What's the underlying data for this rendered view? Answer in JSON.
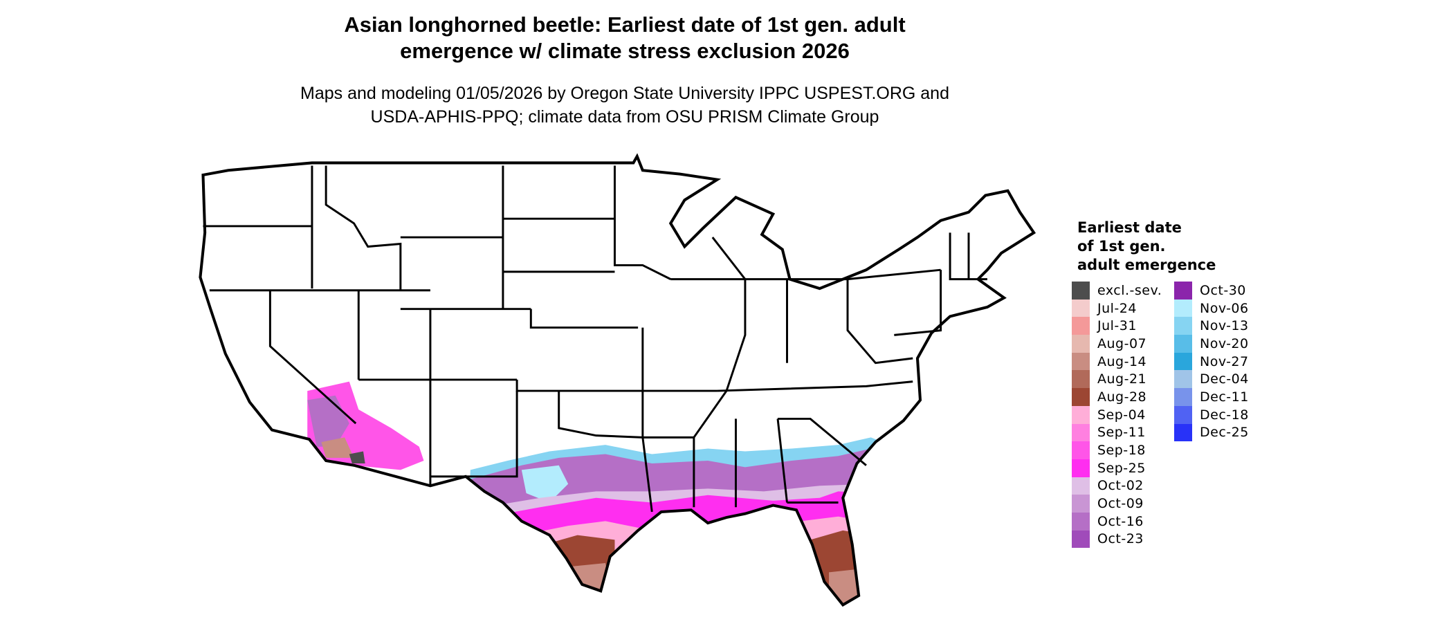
{
  "title": {
    "line1": "Asian longhorned beetle: Earliest date of 1st gen. adult",
    "line2": "emergence w/ climate stress exclusion 2026"
  },
  "subtitle": {
    "line1": "Maps and modeling 01/05/2026 by Oregon State University IPPC USPEST.ORG and",
    "line2": "USDA-APHIS-PPQ; climate data from OSU PRISM Climate Group"
  },
  "legend": {
    "title_lines": [
      "Earliest date",
      "of 1st gen.",
      "adult emergence"
    ],
    "items": [
      {
        "label": "excl.-sev.",
        "color": "#4d4d4d"
      },
      {
        "label": "Jul-24",
        "color": "#f4cccc"
      },
      {
        "label": "Jul-31",
        "color": "#f49999"
      },
      {
        "label": "Aug-07",
        "color": "#e6b8af"
      },
      {
        "label": "Aug-14",
        "color": "#c98d82"
      },
      {
        "label": "Aug-21",
        "color": "#b16a5a"
      },
      {
        "label": "Aug-28",
        "color": "#9c4633"
      },
      {
        "label": "Sep-04",
        "color": "#ffaed8"
      },
      {
        "label": "Sep-11",
        "color": "#ff80e0"
      },
      {
        "label": "Sep-18",
        "color": "#ff55e8"
      },
      {
        "label": "Sep-25",
        "color": "#ff2ef0"
      },
      {
        "label": "Oct-02",
        "color": "#dfbfe6"
      },
      {
        "label": "Oct-09",
        "color": "#c995d4"
      },
      {
        "label": "Oct-16",
        "color": "#b56fc6"
      },
      {
        "label": "Oct-23",
        "color": "#a04bba"
      },
      {
        "label": "Oct-30",
        "color": "#8b25ab"
      },
      {
        "label": "Nov-06",
        "color": "#b3ecfd"
      },
      {
        "label": "Nov-13",
        "color": "#86d4f2"
      },
      {
        "label": "Nov-20",
        "color": "#58bde8"
      },
      {
        "label": "Nov-27",
        "color": "#2aa6dc"
      },
      {
        "label": "Dec-04",
        "color": "#a0c4e8"
      },
      {
        "label": "Dec-11",
        "color": "#7893eb"
      },
      {
        "label": "Dec-18",
        "color": "#5062f3"
      },
      {
        "label": "Dec-25",
        "color": "#2832f8"
      }
    ]
  }
}
